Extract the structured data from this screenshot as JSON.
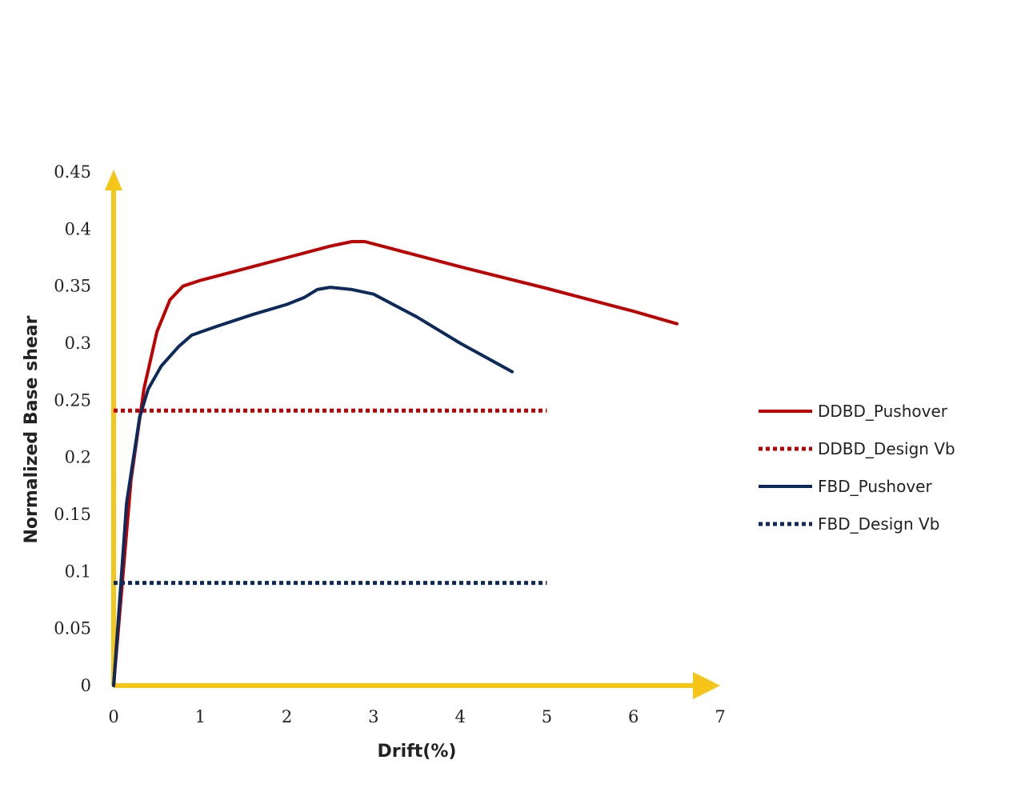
{
  "chart_data": {
    "type": "line",
    "title": "",
    "xlabel": "Drift(%)",
    "ylabel": "Normalized Base shear",
    "xlim": [
      0,
      7
    ],
    "ylim": [
      0,
      0.45
    ],
    "x_ticks": [
      "0",
      "1",
      "2",
      "3",
      "4",
      "5",
      "6",
      "7"
    ],
    "y_ticks": [
      "0",
      "0.05",
      "0.1",
      "0.15",
      "0.2",
      "0.25",
      "0.3",
      "0.35",
      "0.4",
      "0.45"
    ],
    "grid": false,
    "legend_position": "right",
    "axis_color": "#f5c518",
    "series": [
      {
        "name": "DDBD_Pushover",
        "color": "#c00000",
        "style": "solid",
        "x": [
          0,
          0.2,
          0.35,
          0.5,
          0.65,
          0.8,
          1.0,
          1.5,
          2.0,
          2.5,
          2.75,
          2.9,
          3.2,
          4.0,
          5.0,
          6.0,
          6.5
        ],
        "y": [
          0,
          0.18,
          0.26,
          0.31,
          0.338,
          0.35,
          0.355,
          0.365,
          0.375,
          0.385,
          0.389,
          0.389,
          0.383,
          0.367,
          0.348,
          0.328,
          0.317
        ]
      },
      {
        "name": "DDBD_Design Vb",
        "color": "#c00000",
        "style": "dotted",
        "x": [
          0,
          5.0
        ],
        "y": [
          0.241,
          0.241
        ]
      },
      {
        "name": "FBD_Pushover",
        "color": "#0d2a5c",
        "style": "solid",
        "x": [
          0,
          0.15,
          0.3,
          0.4,
          0.55,
          0.75,
          0.9,
          1.2,
          1.6,
          2.0,
          2.2,
          2.35,
          2.5,
          2.75,
          3.0,
          3.5,
          4.0,
          4.6
        ],
        "y": [
          0,
          0.16,
          0.235,
          0.26,
          0.28,
          0.297,
          0.307,
          0.315,
          0.325,
          0.334,
          0.34,
          0.347,
          0.349,
          0.347,
          0.343,
          0.323,
          0.3,
          0.275
        ]
      },
      {
        "name": "FBD_Design Vb",
        "color": "#0d2a5c",
        "style": "dotted",
        "x": [
          0,
          5.0
        ],
        "y": [
          0.09,
          0.09
        ]
      }
    ]
  }
}
